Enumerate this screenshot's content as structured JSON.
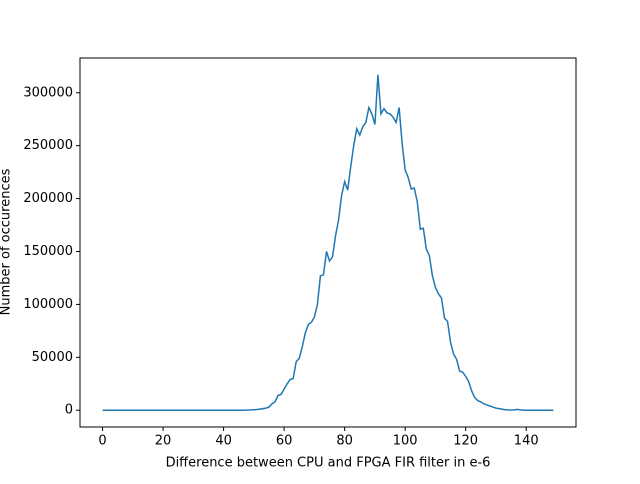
{
  "chart_data": {
    "type": "line",
    "xlabel": "Difference between CPU and FPGA FIR filter in e-6",
    "ylabel": "Number of occurences",
    "x": [
      0,
      1,
      2,
      3,
      4,
      5,
      6,
      7,
      8,
      9,
      10,
      11,
      12,
      13,
      14,
      15,
      16,
      17,
      18,
      19,
      20,
      21,
      22,
      23,
      24,
      25,
      26,
      27,
      28,
      29,
      30,
      31,
      32,
      33,
      34,
      35,
      36,
      37,
      38,
      39,
      40,
      41,
      42,
      43,
      44,
      45,
      46,
      47,
      48,
      49,
      50,
      51,
      52,
      53,
      54,
      55,
      56,
      57,
      58,
      59,
      60,
      61,
      62,
      63,
      64,
      65,
      66,
      67,
      68,
      69,
      70,
      71,
      72,
      73,
      74,
      75,
      76,
      77,
      78,
      79,
      80,
      81,
      82,
      83,
      84,
      85,
      86,
      87,
      88,
      89,
      90,
      91,
      92,
      93,
      94,
      95,
      96,
      97,
      98,
      99,
      100,
      101,
      102,
      103,
      104,
      105,
      106,
      107,
      108,
      109,
      110,
      111,
      112,
      113,
      114,
      115,
      116,
      117,
      118,
      119,
      120,
      121,
      122,
      123,
      124,
      125,
      126,
      127,
      128,
      129,
      130,
      131,
      132,
      133,
      134,
      135,
      136,
      137,
      138,
      139,
      140,
      141,
      142,
      143,
      144,
      145,
      146,
      147,
      148,
      149
    ],
    "values": [
      0,
      0,
      0,
      0,
      0,
      0,
      0,
      0,
      0,
      0,
      0,
      0,
      0,
      0,
      0,
      0,
      0,
      0,
      0,
      0,
      0,
      0,
      0,
      0,
      0,
      0,
      0,
      0,
      0,
      0,
      0,
      0,
      0,
      0,
      0,
      0,
      0,
      0,
      0,
      0,
      0,
      0,
      0,
      0,
      0,
      0,
      0,
      0,
      200,
      300,
      500,
      700,
      1000,
      1500,
      2000,
      3000,
      6000,
      8000,
      14000,
      15000,
      20000,
      25000,
      29000,
      30000,
      46000,
      49000,
      60000,
      73000,
      81000,
      83000,
      88000,
      100000,
      127000,
      128000,
      150000,
      141000,
      145000,
      165000,
      180000,
      203000,
      216000,
      208000,
      230000,
      250000,
      266000,
      260000,
      268000,
      272000,
      286000,
      280000,
      270000,
      317000,
      280000,
      285000,
      281000,
      280000,
      277000,
      272000,
      286000,
      252000,
      227000,
      220000,
      209000,
      210000,
      197000,
      171000,
      172000,
      152000,
      146000,
      127000,
      116000,
      110000,
      106000,
      87000,
      84000,
      64000,
      53000,
      48000,
      37000,
      36000,
      32000,
      27000,
      18000,
      12000,
      9000,
      8000,
      6000,
      5000,
      4000,
      3000,
      2000,
      1500,
      1000,
      500,
      300,
      200,
      300,
      800,
      300,
      0,
      0,
      0,
      0,
      0,
      0,
      0,
      0,
      0,
      0,
      0
    ],
    "color": "#1f77b4",
    "xlim": [
      -7.45,
      156.45
    ],
    "xticks": [
      0,
      20,
      40,
      60,
      80,
      100,
      120,
      140
    ],
    "ylim": [
      -15850,
      332850
    ],
    "yticks": [
      0,
      50000,
      100000,
      150000,
      200000,
      250000,
      300000
    ]
  }
}
